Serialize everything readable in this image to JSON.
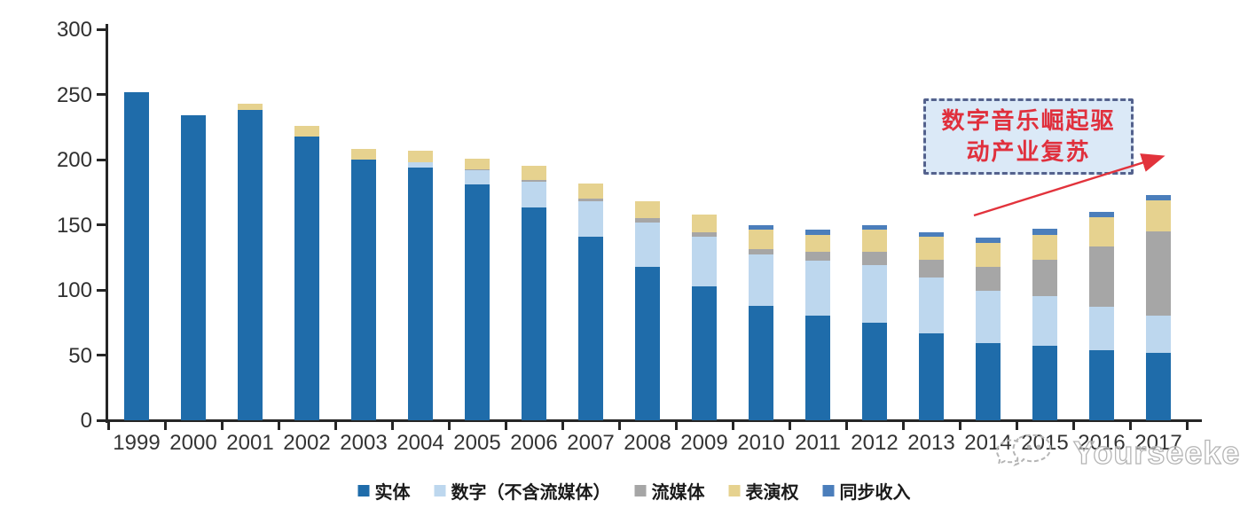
{
  "chart_data": {
    "type": "bar",
    "stacked": true,
    "categories": [
      "1999",
      "2000",
      "2001",
      "2002",
      "2003",
      "2004",
      "2005",
      "2006",
      "2007",
      "2008",
      "2009",
      "2010",
      "2011",
      "2012",
      "2013",
      "2014",
      "2015",
      "2016",
      "2017"
    ],
    "series": [
      {
        "name": "实体",
        "color": "#1F6CAA",
        "values": [
          252,
          234,
          238,
          218,
          200,
          194,
          181,
          163,
          141,
          118,
          103,
          88,
          80,
          75,
          67,
          59,
          57,
          54,
          52
        ]
      },
      {
        "name": "数字（不含流媒体）",
        "color": "#BDD7EE",
        "values": [
          0,
          0,
          0,
          0,
          0,
          4,
          11,
          20,
          27,
          34,
          38,
          39,
          42.5,
          44,
          42.5,
          40,
          38,
          33,
          28
        ]
      },
      {
        "name": "流媒体",
        "color": "#A6A6A6",
        "values": [
          0,
          0,
          0,
          0,
          0,
          0,
          0.5,
          1.5,
          2,
          3,
          3.5,
          4.5,
          7,
          10,
          13.5,
          19,
          28,
          46,
          65
        ]
      },
      {
        "name": "表演权",
        "color": "#E6D28F",
        "values": [
          0,
          0,
          5,
          8,
          8.5,
          9,
          8.5,
          10.5,
          11.5,
          13,
          13.5,
          14.5,
          13,
          17,
          18,
          18,
          19.5,
          22.5,
          24
        ]
      },
      {
        "name": "同步收入",
        "color": "#4B7EBB",
        "values": [
          0,
          0,
          0,
          0,
          0,
          0,
          0,
          0,
          0,
          0,
          0,
          3.5,
          3.5,
          3.5,
          3.5,
          4,
          4.5,
          4.5,
          3.5
        ]
      }
    ],
    "ylim": [
      0,
      300
    ],
    "yticks": [
      0,
      50,
      100,
      150,
      200,
      250,
      300
    ],
    "legend_position": "bottom",
    "grid": false,
    "title": "",
    "xlabel": "",
    "ylabel": ""
  },
  "annotation": {
    "line1": "数字音乐崛起驱",
    "line2": "动产业复苏",
    "text_color": "#E0303D",
    "box_fill": "#DBE9F7",
    "box_border": "#54628D",
    "arrow_color": "#E2333C"
  },
  "watermark": {
    "text": "Yourseeker"
  }
}
